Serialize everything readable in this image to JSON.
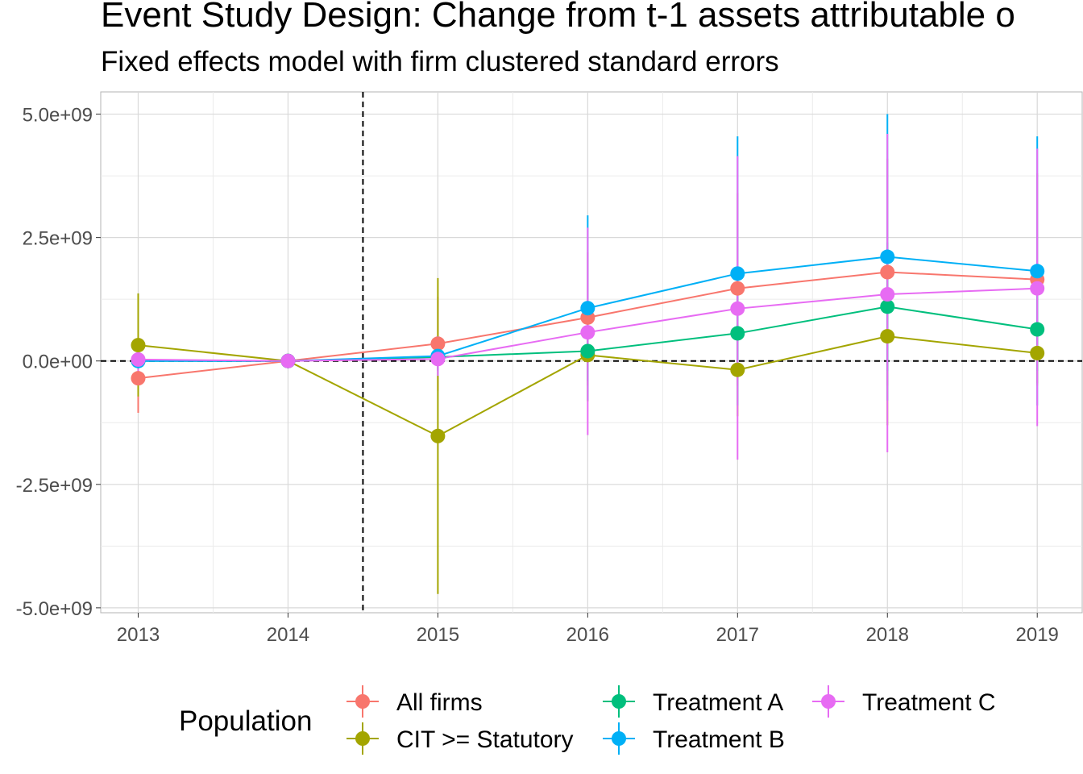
{
  "chart_data": {
    "type": "line",
    "title": "Event Study Design: Change from t-1 assets attributable o",
    "subtitle": "Fixed effects model with firm clustered standard errors",
    "xlabel": "",
    "ylabel": "",
    "x": [
      2013,
      2014,
      2015,
      2016,
      2017,
      2018,
      2019
    ],
    "x_tick_labels": [
      "2013",
      "2014",
      "2015",
      "2016",
      "2017",
      "2018",
      "2019"
    ],
    "ylim": [
      -5100000000.0,
      5450000000.0
    ],
    "y_ticks": [
      -5000000000.0,
      -2500000000.0,
      0,
      2500000000.0,
      5000000000.0
    ],
    "y_tick_labels": [
      "-5.0e+09",
      "-2.5e+09",
      "0.0e+00",
      "2.5e+09",
      "5.0e+09"
    ],
    "xlim": [
      2012.75,
      2019.3
    ],
    "reference_lines": {
      "vertical_x": 2014.5,
      "horizontal_y": 0
    },
    "grid": true,
    "legend_title": "Population",
    "legend_position": "bottom",
    "series": [
      {
        "name": "All firms",
        "color": "#F8766D",
        "values": [
          -350000000.0,
          0,
          350000000.0,
          880000000.0,
          1470000000.0,
          1800000000.0,
          1650000000.0
        ],
        "lower": [
          -1050000000.0,
          0,
          -600000000.0,
          -500000000.0,
          -500000000.0,
          -500000000.0,
          -500000000.0
        ],
        "upper": [
          350000000.0,
          0,
          1300000000.0,
          2200000000.0,
          3400000000.0,
          4100000000.0,
          3800000000.0
        ]
      },
      {
        "name": "CIT >= Statutory",
        "color": "#A3A500",
        "values": [
          320000000.0,
          0,
          -1520000000.0,
          120000000.0,
          -180000000.0,
          500000000.0,
          160000000.0
        ],
        "lower": [
          -720000000.0,
          0,
          -4720000000.0,
          -820000000.0,
          -1120000000.0,
          -1300000000.0,
          -450000000.0
        ],
        "upper": [
          1370000000.0,
          0,
          1680000000.0,
          1070000000.0,
          760000000.0,
          2300000000.0,
          770000000.0
        ]
      },
      {
        "name": "Treatment A",
        "color": "#00BF7D",
        "values": [
          0.0,
          0,
          80000000.0,
          200000000.0,
          560000000.0,
          1100000000.0,
          640000000.0
        ],
        "lower": [
          -300000000.0,
          0,
          -200000000.0,
          -400000000.0,
          -300000000.0,
          -200000000.0,
          -200000000.0
        ],
        "upper": [
          300000000.0,
          0,
          400000000.0,
          800000000.0,
          1400000000.0,
          2400000000.0,
          1500000000.0
        ]
      },
      {
        "name": "Treatment B",
        "color": "#00B0F6",
        "values": [
          0.0,
          0,
          100000000.0,
          1070000000.0,
          1770000000.0,
          2110000000.0,
          1820000000.0
        ],
        "lower": [
          -300000000.0,
          0,
          -300000000.0,
          -800000000.0,
          -900000000.0,
          -800000000.0,
          -900000000.0
        ],
        "upper": [
          300000000.0,
          0,
          500000000.0,
          2950000000.0,
          4550000000.0,
          5000000000.0,
          4550000000.0
        ]
      },
      {
        "name": "Treatment C",
        "color": "#E76BF3",
        "values": [
          30000000.0,
          0,
          40000000.0,
          580000000.0,
          1060000000.0,
          1350000000.0,
          1470000000.0
        ],
        "lower": [
          -300000000.0,
          0,
          -300000000.0,
          -1500000000.0,
          -2000000000.0,
          -1850000000.0,
          -1320000000.0
        ],
        "upper": [
          300000000.0,
          0,
          400000000.0,
          2700000000.0,
          4150000000.0,
          4600000000.0,
          4300000000.0
        ]
      }
    ]
  }
}
